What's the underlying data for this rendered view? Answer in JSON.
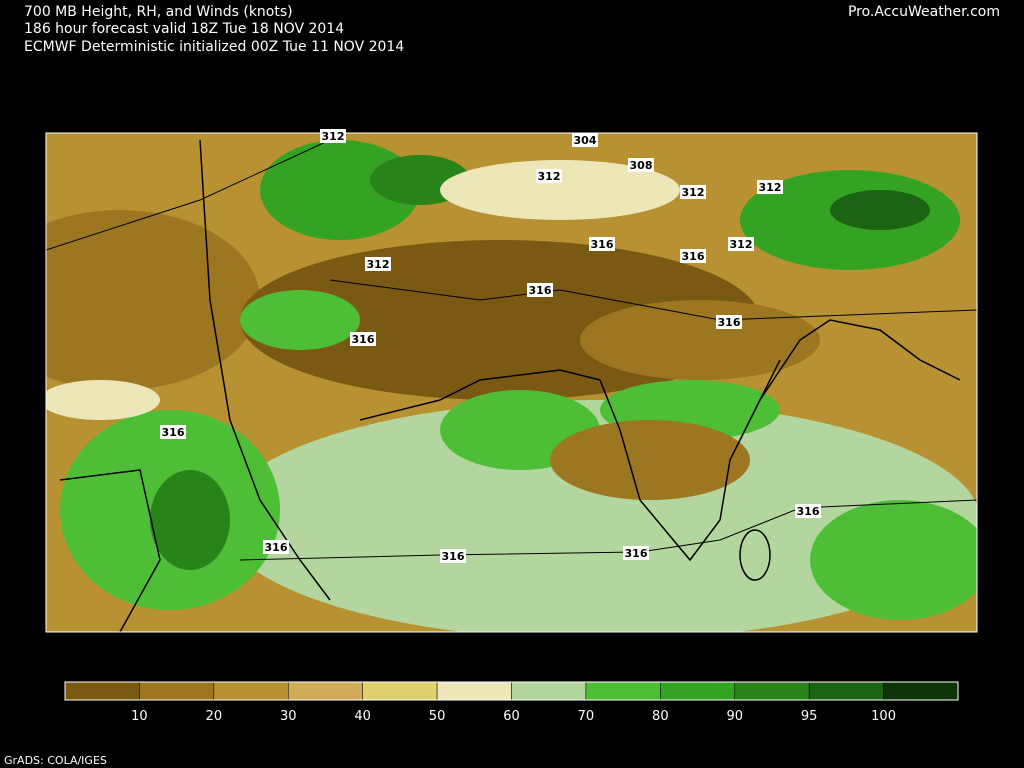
{
  "header": {
    "lines": [
      "700 MB Height, RH, and Winds (knots)",
      "186 hour forecast valid 18Z Tue 18 NOV 2014",
      "ECMWF Deterministic initialized 00Z Tue 11 NOV 2014"
    ],
    "source": "Pro.AccuWeather.com"
  },
  "map": {
    "contour_labels": [
      312,
      304,
      308,
      312,
      312,
      312,
      316,
      316,
      312,
      312,
      316,
      316,
      316,
      316,
      316,
      316,
      316,
      316
    ]
  },
  "colorbar": {
    "colors": [
      "#7a5912",
      "#9c7620",
      "#b89232",
      "#d0ac58",
      "#e0d070",
      "#ece6b8",
      "#b2d69e",
      "#4ebe36",
      "#34a222",
      "#288418",
      "#1c6414",
      "#10340a"
    ],
    "labels": [
      10,
      20,
      30,
      40,
      50,
      60,
      70,
      80,
      90,
      95,
      100
    ]
  },
  "footer": "GrADS: COLA/IGES"
}
